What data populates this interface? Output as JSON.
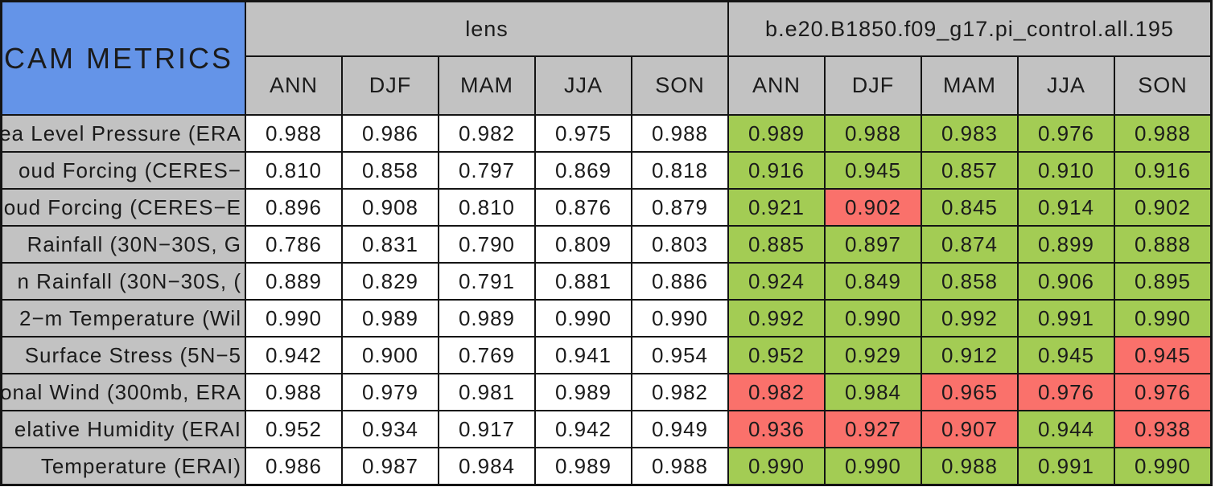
{
  "corner": {
    "title": "CAM METRICS"
  },
  "colors": {
    "blue": "#6494E8",
    "gray": "#C2C2C2",
    "green_pass": "#A3CC54",
    "red_fail": "#FA716B",
    "white": "#FFFFFF",
    "grid_line": "#141414"
  },
  "chart_data": {
    "type": "table",
    "title": "CAM METRICS",
    "column_groups": [
      {
        "label": "lens"
      },
      {
        "label": "b.e20.B1850.f09_g17.pi_control.all.195"
      }
    ],
    "seasons": [
      "ANN",
      "DJF",
      "MAM",
      "JJA",
      "SON"
    ],
    "legend_note_flags": "g = green highlighted cell, r = red highlighted cell (second group only); first group cells are white",
    "rows": [
      {
        "label": "ea Level Pressure (ERA",
        "lens": [
          "0.988",
          "0.986",
          "0.982",
          "0.975",
          "0.988"
        ],
        "control": [
          "0.989",
          "0.988",
          "0.983",
          "0.976",
          "0.988"
        ],
        "control_flags": [
          "g",
          "g",
          "g",
          "g",
          "g"
        ]
      },
      {
        "label": "oud Forcing (CERES−",
        "lens": [
          "0.810",
          "0.858",
          "0.797",
          "0.869",
          "0.818"
        ],
        "control": [
          "0.916",
          "0.945",
          "0.857",
          "0.910",
          "0.916"
        ],
        "control_flags": [
          "g",
          "g",
          "g",
          "g",
          "g"
        ]
      },
      {
        "label": "oud Forcing (CERES−E",
        "lens": [
          "0.896",
          "0.908",
          "0.810",
          "0.876",
          "0.879"
        ],
        "control": [
          "0.921",
          "0.902",
          "0.845",
          "0.914",
          "0.902"
        ],
        "control_flags": [
          "g",
          "r",
          "g",
          "g",
          "g"
        ]
      },
      {
        "label": "Rainfall (30N−30S, G",
        "lens": [
          "0.786",
          "0.831",
          "0.790",
          "0.809",
          "0.803"
        ],
        "control": [
          "0.885",
          "0.897",
          "0.874",
          "0.899",
          "0.888"
        ],
        "control_flags": [
          "g",
          "g",
          "g",
          "g",
          "g"
        ]
      },
      {
        "label": "n Rainfall (30N−30S, (",
        "lens": [
          "0.889",
          "0.829",
          "0.791",
          "0.881",
          "0.886"
        ],
        "control": [
          "0.924",
          "0.849",
          "0.858",
          "0.906",
          "0.895"
        ],
        "control_flags": [
          "g",
          "g",
          "g",
          "g",
          "g"
        ]
      },
      {
        "label": "2−m Temperature (Wil",
        "lens": [
          "0.990",
          "0.989",
          "0.989",
          "0.990",
          "0.990"
        ],
        "control": [
          "0.992",
          "0.990",
          "0.992",
          "0.991",
          "0.990"
        ],
        "control_flags": [
          "g",
          "g",
          "g",
          "g",
          "g"
        ]
      },
      {
        "label": "Surface Stress (5N−5",
        "lens": [
          "0.942",
          "0.900",
          "0.769",
          "0.941",
          "0.954"
        ],
        "control": [
          "0.952",
          "0.929",
          "0.912",
          "0.945",
          "0.945"
        ],
        "control_flags": [
          "g",
          "g",
          "g",
          "g",
          "r"
        ]
      },
      {
        "label": "onal Wind (300mb, ERA",
        "lens": [
          "0.988",
          "0.979",
          "0.981",
          "0.989",
          "0.982"
        ],
        "control": [
          "0.982",
          "0.984",
          "0.965",
          "0.976",
          "0.976"
        ],
        "control_flags": [
          "r",
          "g",
          "r",
          "r",
          "r"
        ]
      },
      {
        "label": "elative Humidity (ERAI",
        "lens": [
          "0.952",
          "0.934",
          "0.917",
          "0.942",
          "0.949"
        ],
        "control": [
          "0.936",
          "0.927",
          "0.907",
          "0.944",
          "0.938"
        ],
        "control_flags": [
          "r",
          "r",
          "r",
          "g",
          "r"
        ]
      },
      {
        "label": "Temperature (ERAI)",
        "lens": [
          "0.986",
          "0.987",
          "0.984",
          "0.989",
          "0.988"
        ],
        "control": [
          "0.990",
          "0.990",
          "0.988",
          "0.991",
          "0.990"
        ],
        "control_flags": [
          "g",
          "g",
          "g",
          "g",
          "g"
        ]
      }
    ]
  }
}
